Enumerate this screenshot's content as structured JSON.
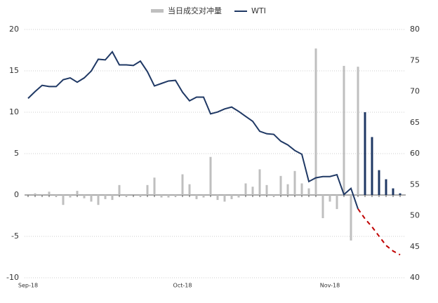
{
  "chart_data": {
    "type": "combo",
    "categories": [
      "Sep-18",
      null,
      null,
      null,
      null,
      null,
      null,
      null,
      null,
      null,
      null,
      null,
      null,
      null,
      null,
      null,
      null,
      null,
      null,
      null,
      null,
      null,
      "Oct-18",
      null,
      null,
      null,
      null,
      null,
      null,
      null,
      null,
      null,
      null,
      null,
      null,
      null,
      null,
      null,
      null,
      null,
      null,
      null,
      null,
      "Nov-18",
      null,
      null,
      null,
      null,
      null,
      null,
      null,
      null,
      null,
      null
    ],
    "series": [
      {
        "name": "当日成交对冲量",
        "type": "bar",
        "color": "#bfbfbf",
        "colors": [
          "#bfbfbf",
          "#bfbfbf",
          "#bfbfbf",
          "#bfbfbf",
          "#bfbfbf",
          "#bfbfbf",
          "#bfbfbf",
          "#bfbfbf",
          "#bfbfbf",
          "#bfbfbf",
          "#bfbfbf",
          "#bfbfbf",
          "#bfbfbf",
          "#bfbfbf",
          "#bfbfbf",
          "#bfbfbf",
          "#bfbfbf",
          "#bfbfbf",
          "#bfbfbf",
          "#bfbfbf",
          "#bfbfbf",
          "#bfbfbf",
          "#bfbfbf",
          "#bfbfbf",
          "#bfbfbf",
          "#bfbfbf",
          "#bfbfbf",
          "#bfbfbf",
          "#bfbfbf",
          "#bfbfbf",
          "#bfbfbf",
          "#bfbfbf",
          "#bfbfbf",
          "#bfbfbf",
          "#bfbfbf",
          "#bfbfbf",
          "#bfbfbf",
          "#bfbfbf",
          "#bfbfbf",
          "#bfbfbf",
          "#bfbfbf",
          "#bfbfbf",
          "#bfbfbf",
          "#bfbfbf",
          "#bfbfbf",
          "#bfbfbf",
          "#bfbfbf",
          "#bfbfbf",
          "#1f3864",
          "#1f3864",
          "#1f3864",
          "#1f3864",
          "#1f3864",
          "#1f3864"
        ],
        "values": [
          0,
          0.2,
          0.1,
          0.4,
          -0.2,
          -1.2,
          -0.3,
          0.5,
          -0.4,
          -0.8,
          -1.2,
          -0.5,
          -0.6,
          1.2,
          -0.2,
          0,
          -0.2,
          1.2,
          2.1,
          -0.3,
          -0.3,
          -0.2,
          2.5,
          1.3,
          -0.5,
          -0.3,
          4.6,
          -0.6,
          -0.8,
          -0.5,
          -0.3,
          1.4,
          1,
          3.1,
          1.2,
          -0.2,
          2.3,
          1.3,
          2.9,
          1.4,
          0.8,
          17.7,
          -2.8,
          -0.8,
          -1.7,
          15.6,
          -5.5,
          15.5,
          10,
          7,
          3,
          1.9,
          0.8,
          0.2
        ]
      },
      {
        "name": "WTI",
        "type": "line",
        "axis": "y2",
        "color": "#1f3864",
        "values": [
          68.9,
          70,
          71,
          70.8,
          70.8,
          71.9,
          72.2,
          71.5,
          72.2,
          73.3,
          75.2,
          75.1,
          76.4,
          74.3,
          74.3,
          74.2,
          74.9,
          73.2,
          70.9,
          71.3,
          71.7,
          71.8,
          69.9,
          68.5,
          69.1,
          69.1,
          66.4,
          66.7,
          67.2,
          67.5,
          66.8,
          66,
          65.2,
          63.6,
          63.2,
          63.1,
          62,
          61.4,
          60.5,
          59.9,
          55.5,
          56.1,
          56.3,
          56.3,
          56.6,
          53.4,
          54.4,
          51.1,
          null,
          null,
          null,
          null,
          null,
          null
        ]
      },
      {
        "name": null,
        "type": "line",
        "axis": "y2",
        "color": "#c00000",
        "dashed": true,
        "values": [
          null,
          null,
          null,
          null,
          null,
          null,
          null,
          null,
          null,
          null,
          null,
          null,
          null,
          null,
          null,
          null,
          null,
          null,
          null,
          null,
          null,
          null,
          null,
          null,
          null,
          null,
          null,
          null,
          null,
          null,
          null,
          null,
          null,
          null,
          null,
          null,
          null,
          null,
          null,
          null,
          null,
          null,
          null,
          null,
          null,
          null,
          null,
          51.1,
          49.5,
          48.2,
          46.7,
          45.2,
          44.3,
          43.7
        ]
      }
    ],
    "ylim": [
      -10,
      20
    ],
    "yticks": [
      -10,
      -5,
      0,
      5,
      10,
      15,
      20
    ],
    "y2lim": [
      40,
      80
    ],
    "y2ticks": [
      40,
      45,
      50,
      55,
      60,
      65,
      70,
      75,
      80
    ],
    "grid": true,
    "legend": "top"
  }
}
